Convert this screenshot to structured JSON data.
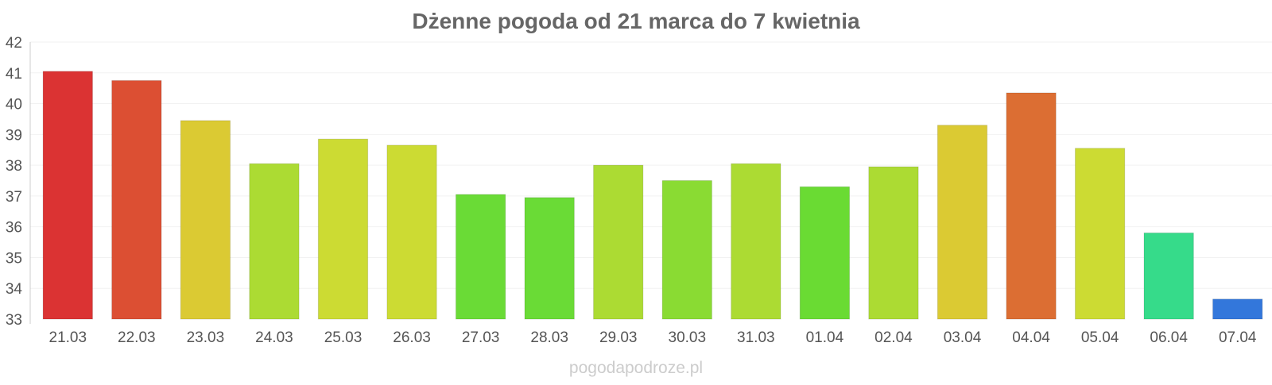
{
  "chart_data": {
    "type": "bar",
    "title": "Dżenne pogoda od 21 marca do 7 kwietnia",
    "xlabel": "",
    "ylabel": "",
    "ylim": [
      33,
      42
    ],
    "yticks": [
      "33",
      "34",
      "35",
      "36",
      "37",
      "38",
      "39",
      "40",
      "41",
      "42"
    ],
    "grid": true,
    "categories": [
      "21.03",
      "22.03",
      "23.03",
      "24.03",
      "25.03",
      "26.03",
      "27.03",
      "28.03",
      "29.03",
      "30.03",
      "31.03",
      "01.04",
      "02.04",
      "03.04",
      "04.04",
      "05.04",
      "06.04",
      "07.04"
    ],
    "values": [
      41.05,
      40.75,
      39.45,
      38.05,
      38.85,
      38.65,
      37.05,
      36.95,
      38.0,
      37.5,
      38.05,
      37.3,
      37.95,
      39.3,
      40.35,
      38.55,
      35.8,
      33.65
    ],
    "colors": [
      "#db3333",
      "#dc4f33",
      "#dbca33",
      "#acdb33",
      "#ccdb33",
      "#ccdb33",
      "#6adb36",
      "#6adb36",
      "#acdb33",
      "#8adb33",
      "#acdb33",
      "#6adb33",
      "#acdb33",
      "#dbca33",
      "#dc6e33",
      "#ccdb33",
      "#36db8a",
      "#3377db"
    ],
    "watermark": "pogodapodroze.pl"
  }
}
